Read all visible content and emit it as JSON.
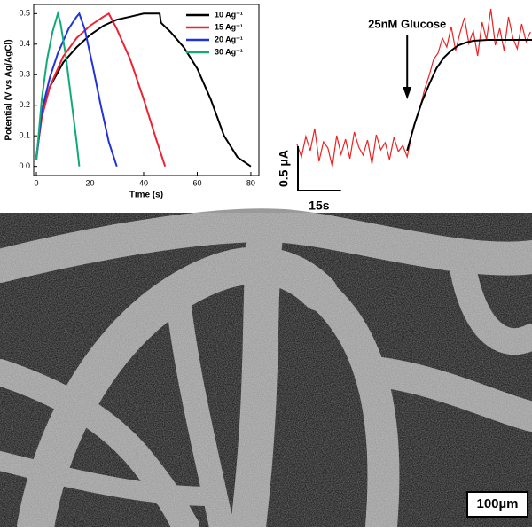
{
  "chart_data": [
    {
      "type": "line",
      "xlabel": "Time (s)",
      "ylabel": "Potential (V vs Ag/AgCl)",
      "xlim": [
        -1,
        83
      ],
      "ylim": [
        -0.03,
        0.53
      ],
      "xticks": [
        0,
        20,
        40,
        60,
        80
      ],
      "yticks": [
        {
          "value": 0,
          "label": "0.0"
        },
        0.1,
        0.2,
        0.3,
        0.4,
        0.5
      ],
      "legend": "upper right",
      "series": [
        {
          "name": "10 Ag⁻¹",
          "color": "#000000",
          "x": [
            0,
            2,
            5,
            10,
            15,
            20,
            25,
            30,
            35,
            40,
            46,
            46.5,
            50,
            55,
            60,
            65,
            70,
            75,
            80
          ],
          "values": [
            0.03,
            0.17,
            0.26,
            0.34,
            0.39,
            0.43,
            0.46,
            0.48,
            0.49,
            0.5,
            0.5,
            0.47,
            0.44,
            0.39,
            0.32,
            0.22,
            0.1,
            0.03,
            0
          ]
        },
        {
          "name": "15 Ag⁻¹",
          "color": "#ee2233",
          "x": [
            0,
            2,
            5,
            10,
            15,
            20,
            25,
            27,
            30,
            35,
            40,
            45,
            48
          ],
          "values": [
            0.03,
            0.16,
            0.26,
            0.36,
            0.42,
            0.46,
            0.49,
            0.5,
            0.45,
            0.35,
            0.22,
            0.08,
            0
          ]
        },
        {
          "name": "20 Ag⁻¹",
          "color": "#2233dd",
          "x": [
            0,
            2,
            5,
            8,
            12,
            15,
            16,
            18,
            21,
            24,
            27,
            30
          ],
          "values": [
            0.02,
            0.18,
            0.29,
            0.37,
            0.45,
            0.49,
            0.5,
            0.45,
            0.33,
            0.2,
            0.08,
            0
          ]
        },
        {
          "name": "30 Ag⁻¹",
          "color": "#11aa77",
          "x": [
            0,
            2,
            4,
            6,
            8,
            9,
            11,
            13,
            15,
            16
          ],
          "values": [
            0.02,
            0.22,
            0.35,
            0.44,
            0.5,
            0.47,
            0.36,
            0.22,
            0.08,
            0
          ]
        }
      ]
    },
    {
      "type": "trace",
      "xlim": [
        0,
        80
      ],
      "ylim": [
        0,
        2.15
      ],
      "annotation": {
        "text": "25nM Glucose",
        "x": 37.5
      },
      "scale_x": {
        "value": 15,
        "label": "15s"
      },
      "scale_y": {
        "value": 0.5,
        "label": "0.5 μA"
      },
      "series": [
        {
          "color": "#ee2222",
          "x": [
            0,
            1.5,
            3,
            4.5,
            6,
            7.5,
            9,
            10.5,
            12,
            13.5,
            15,
            16.5,
            18,
            19.5,
            21,
            22.5,
            24,
            25.5,
            27,
            28.5,
            30,
            31.5,
            33,
            34.5,
            36,
            37.5,
            39,
            40.5,
            42,
            43.5,
            45,
            46.5,
            48,
            49.5,
            51,
            52.5,
            54,
            55.5,
            57,
            58.5,
            60,
            61.5,
            63,
            64.5,
            66,
            67.5,
            69,
            70.5,
            72,
            73.5,
            75,
            76.5,
            78,
            79.5
          ],
          "values": [
            0.52,
            0.38,
            0.61,
            0.45,
            0.7,
            0.33,
            0.55,
            0.48,
            0.27,
            0.62,
            0.41,
            0.58,
            0.36,
            0.66,
            0.49,
            0.4,
            0.57,
            0.3,
            0.63,
            0.46,
            0.54,
            0.35,
            0.6,
            0.44,
            0.51,
            0.38,
            0.62,
            0.8,
            0.95,
            1.15,
            1.3,
            1.48,
            1.55,
            1.72,
            1.62,
            1.85,
            1.58,
            1.78,
            1.95,
            1.66,
            1.8,
            1.52,
            1.9,
            1.7,
            2.05,
            1.64,
            1.83,
            1.58,
            1.96,
            1.72,
            1.6,
            1.88,
            1.68,
            1.79
          ]
        },
        {
          "color": "#000000",
          "x": [
            37.5,
            40,
            42.5,
            45,
            47.5,
            50,
            52.5,
            55,
            57.5,
            60,
            65,
            70,
            75,
            80
          ],
          "values": [
            0.45,
            0.75,
            1.0,
            1.2,
            1.38,
            1.5,
            1.58,
            1.64,
            1.67,
            1.69,
            1.7,
            1.7,
            1.7,
            1.7
          ]
        }
      ]
    }
  ],
  "image": {
    "scale_bar": "100µm"
  }
}
